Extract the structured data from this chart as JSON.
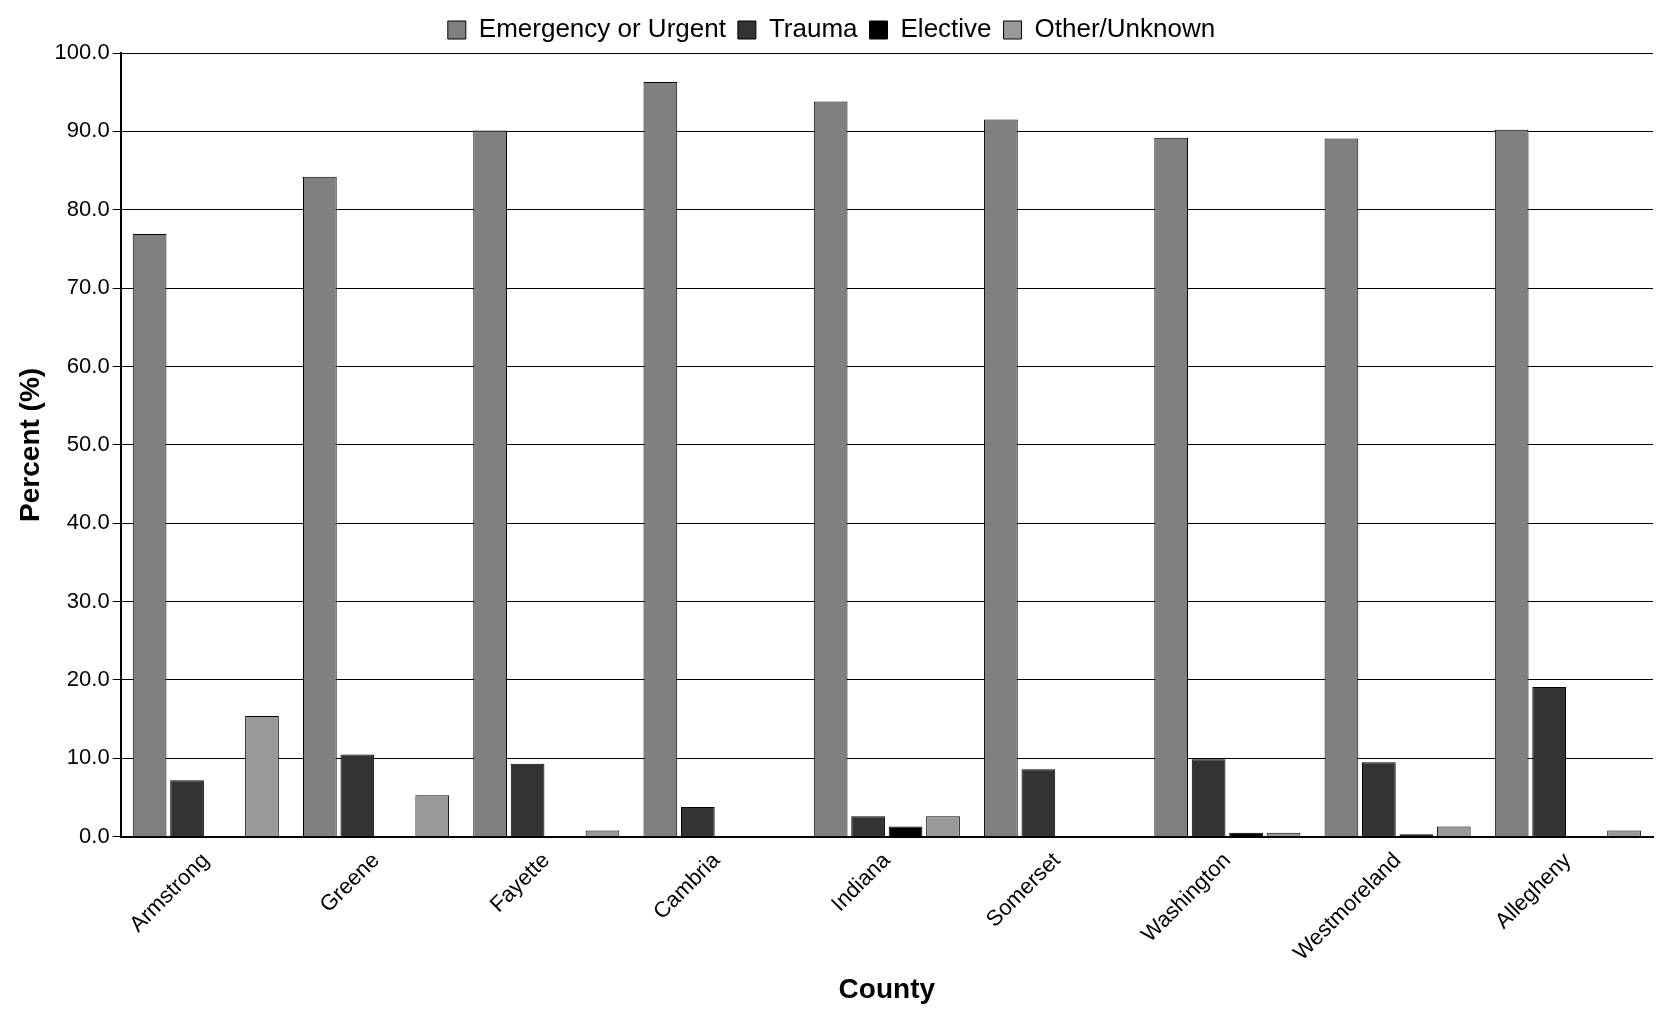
{
  "chart_data": {
    "type": "bar",
    "xlabel": "County",
    "ylabel": "Percent (%)",
    "categories": [
      "Armstrong",
      "Greene",
      "Fayette",
      "Cambria",
      "Indiana",
      "Somerset",
      "Washington",
      "Westmoreland",
      "Allegheny"
    ],
    "series": [
      {
        "name": "Emergency or Urgent",
        "color": "#808080",
        "values": [
          76.9,
          84.2,
          90.1,
          96.3,
          93.8,
          91.5,
          89.2,
          89.1,
          90.2
        ]
      },
      {
        "name": "Trauma",
        "color": "#333333",
        "values": [
          7.2,
          10.5,
          9.3,
          3.8,
          2.6,
          8.6,
          9.9,
          9.5,
          19.1
        ]
      },
      {
        "name": "Elective",
        "color": "#000000",
        "values": [
          null,
          null,
          null,
          null,
          1.3,
          null,
          0.5,
          0.3,
          null
        ]
      },
      {
        "name": "Other/Unknown",
        "color": "#999999",
        "values": [
          15.4,
          5.3,
          0.8,
          null,
          2.6,
          null,
          0.5,
          1.3,
          0.8
        ]
      }
    ],
    "ylim": [
      0,
      100
    ],
    "yticks": [
      {
        "value": 0,
        "label": "0.0"
      },
      {
        "value": 10,
        "label": "10.0"
      },
      {
        "value": 20,
        "label": "20.0"
      },
      {
        "value": 30,
        "label": "30.0"
      },
      {
        "value": 40,
        "label": "40.0"
      },
      {
        "value": 50,
        "label": "50.0"
      },
      {
        "value": 60,
        "label": "60.0"
      },
      {
        "value": 70,
        "label": "70.0"
      },
      {
        "value": 80,
        "label": "80.0"
      },
      {
        "value": 90,
        "label": "90.0"
      },
      {
        "value": 100,
        "label": "100.0"
      }
    ],
    "grid": "y",
    "legend": "top"
  }
}
